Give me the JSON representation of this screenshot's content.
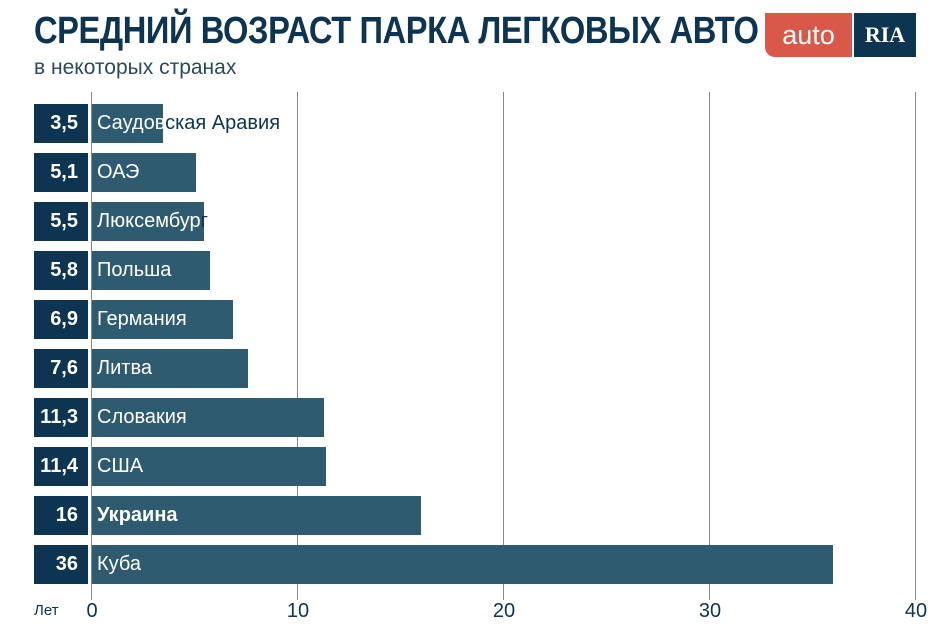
{
  "chart_data": {
    "type": "bar",
    "orientation": "horizontal",
    "title": "СРЕДНИЙ ВОЗРАСТ ПАРКА ЛЕГКОВЫХ АВТО",
    "subtitle": "в некоторых странах",
    "xlabel": "Лет",
    "xlim": [
      0,
      40
    ],
    "xticks": [
      "0",
      "10",
      "20",
      "30",
      "40"
    ],
    "grid": true,
    "categories": [
      "Саудовская Аравия",
      "ОАЭ",
      "Люксембург",
      "Польша",
      "Германия",
      "Литва",
      "Словакия",
      "США",
      "Украина",
      "Куба"
    ],
    "values": [
      3.5,
      5.1,
      5.5,
      5.8,
      6.9,
      7.6,
      11.3,
      11.4,
      16,
      36
    ],
    "value_labels": [
      "3,5",
      "5,1",
      "5,5",
      "5,8",
      "6,9",
      "7,6",
      "11,3",
      "11,4",
      "16",
      "36"
    ],
    "highlight": "Украина",
    "bar_color": "#2e5b70",
    "label_box_color": "#0d3450"
  },
  "logo": {
    "left": "auto",
    "right": "RIA",
    "left_color": "#d9584a",
    "right_color": "#0d3450"
  }
}
